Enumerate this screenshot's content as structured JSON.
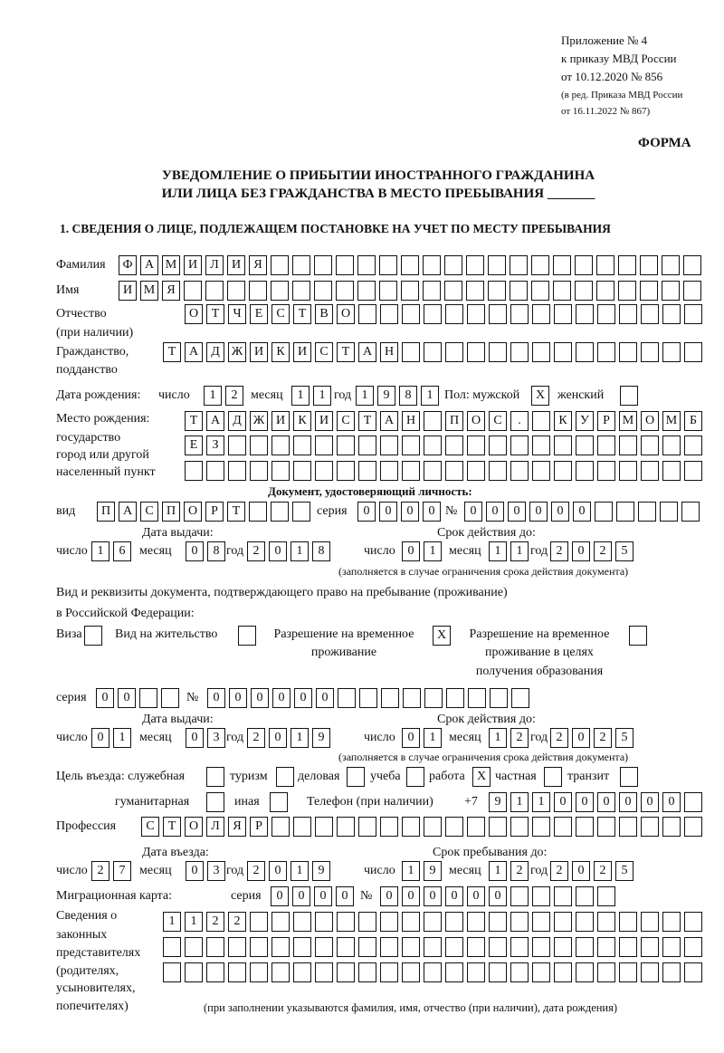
{
  "header": {
    "appendix": "Приложение № 4",
    "order": "к приказу МВД России",
    "order_date": "от 10.12.2020 № 856",
    "revision1": "(в ред. Приказа МВД России",
    "revision2": "от 16.11.2022 № 867)",
    "form_label": "ФОРМА",
    "title1": "УВЕДОМЛЕНИЕ О ПРИБЫТИИ ИНОСТРАННОГО ГРАЖДАНИНА",
    "title2": "ИЛИ ЛИЦА БЕЗ ГРАЖДАНСТВА В МЕСТО ПРЕБЫВАНИЯ _______",
    "section1": "1. СВЕДЕНИЯ О ЛИЦЕ, ПОДЛЕЖАЩЕМ ПОСТАНОВКЕ НА УЧЕТ ПО МЕСТУ ПРЕБЫВАНИЯ"
  },
  "labels": {
    "surname": "Фамилия",
    "name": "Имя",
    "patronymic1": "Отчество",
    "patronymic2": "(при наличии)",
    "citizenship1": "Гражданство,",
    "citizenship2": "подданство",
    "birth_date": "Дата рождения:",
    "day": "число",
    "month": "месяц",
    "year": "год",
    "sex_male": "Пол: мужской",
    "sex_female": "женский",
    "birthplace1": "Место рождения:",
    "birthplace2": "государство",
    "birthplace3": "город или другой",
    "birthplace4": "населенный пункт",
    "id_doc": "Документ, удостоверяющий личность:",
    "kind": "вид",
    "series": "серия",
    "number": "№",
    "issue_date": "Дата выдачи:",
    "valid_until": "Срок действия до:",
    "validity_note": "(заполняется в случае ограничения срока действия документа)",
    "permit_doc1": "Вид и реквизиты документа, подтверждающего право на пребывание (проживание)",
    "permit_doc2": "в Российской Федерации:",
    "visa": "Виза",
    "residence_permit": "Вид на жительство",
    "temp_residence1": "Разрешение на временное",
    "temp_residence2": "проживание",
    "temp_edu1": "Разрешение на временное",
    "temp_edu2": "проживание в целях",
    "temp_edu3": "получения образования",
    "purpose": "Цель въезда: служебная",
    "tourism": "туризм",
    "business": "деловая",
    "study": "учеба",
    "work": "работа",
    "private": "частная",
    "transit": "транзит",
    "humanitarian": "гуманитарная",
    "other": "иная",
    "phone": "Телефон (при наличии)",
    "phone_prefix": "+7",
    "profession": "Профессия",
    "entry_date": "Дата въезда:",
    "stay_until": "Срок пребывания до:",
    "migration_card": "Миграционная карта:",
    "reps1": "Сведения о",
    "reps2": "законных",
    "reps3": "представителях",
    "reps4": "(родителях,",
    "reps5": "усыновителях,",
    "reps6": "попечителях)",
    "reps_note": "(при заполнении указываются фамилия, имя, отчество (при наличии), дата рождения)"
  },
  "person": {
    "surname": "ФАМИЛИЯ",
    "name": "ИМЯ",
    "patronymic": "ОТЧЕСТВО",
    "citizenship": "ТАДЖИКИСТАН",
    "birth_day": "12",
    "birth_month": "11",
    "birth_year": "1981",
    "sex_male": "X",
    "sex_female": "",
    "birthplace_line1": "ТАДЖИКИСТАН ПОС. КУРМОМБ",
    "birthplace_line2": "ЕЗ",
    "birthplace_line3": ""
  },
  "id_document": {
    "kind": "ПАСПОРТ",
    "series": "0000",
    "number": "000000",
    "issue_day": "16",
    "issue_month": "08",
    "issue_year": "2018",
    "valid_day": "01",
    "valid_month": "11",
    "valid_year": "2025"
  },
  "permit": {
    "visa": "",
    "residence_permit": "",
    "temp_residence": "X",
    "temp_edu": "",
    "series": "00",
    "number": "000000",
    "issue_day": "01",
    "issue_month": "03",
    "issue_year": "2019",
    "valid_day": "01",
    "valid_month": "12",
    "valid_year": "2025"
  },
  "purpose": {
    "official": "",
    "tourism": "",
    "business": "",
    "study": "",
    "work": "X",
    "private": "",
    "transit": "",
    "humanitarian": "",
    "other": ""
  },
  "phone": "911000000",
  "profession": "СТОЛЯР",
  "entry": {
    "day": "27",
    "month": "03",
    "year": "2019",
    "stay_day": "19",
    "stay_month": "12",
    "stay_year": "2025"
  },
  "migration_card": {
    "series": "0000",
    "number": "000000"
  },
  "representatives": {
    "line1": "1122",
    "line2": "",
    "line3": ""
  }
}
